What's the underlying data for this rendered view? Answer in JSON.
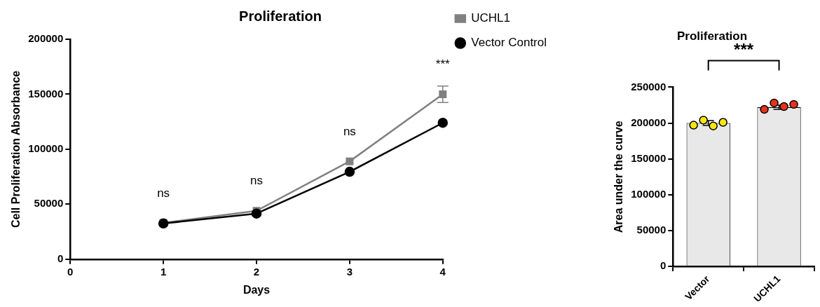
{
  "chart_data": [
    {
      "type": "line",
      "title": "Proliferation",
      "xlabel": "Days",
      "ylabel": "Cell Proliferation Absorbance",
      "x": [
        1,
        2,
        3,
        4
      ],
      "series": [
        {
          "name": "UCHL1",
          "color": "#808080",
          "marker": "square",
          "values": [
            33000,
            44000,
            89000,
            150000
          ],
          "errors": [
            null,
            null,
            null,
            7500
          ]
        },
        {
          "name": "Vector Control",
          "color": "#000000",
          "marker": "circle",
          "values": [
            32500,
            41500,
            79500,
            124000
          ]
        }
      ],
      "xlim": [
        0,
        4
      ],
      "xticks": [
        0,
        1,
        2,
        3,
        4
      ],
      "ylim": [
        0,
        200000
      ],
      "yticks": [
        0,
        50000,
        100000,
        150000,
        200000
      ],
      "legend": "right",
      "annotations": [
        {
          "text": "ns",
          "x": 1,
          "y": 33000
        },
        {
          "text": "ns",
          "x": 2,
          "y": 44000
        },
        {
          "text": "ns",
          "x": 3,
          "y": 89000
        },
        {
          "text": "***",
          "x": 4,
          "y": 150000
        }
      ]
    },
    {
      "type": "bar",
      "title": "Proliferation",
      "ylabel": "Area under the curve",
      "categories": [
        "Vector",
        "UCHL1"
      ],
      "series": [
        {
          "type": "bar",
          "color": "#e8e8e8",
          "values": [
            200000,
            222000
          ],
          "errors": [
            3500,
            3000
          ]
        },
        {
          "type": "scatter",
          "color": "#f5e614",
          "x": [
            "Vector",
            "Vector",
            "Vector",
            "Vector"
          ],
          "values": [
            197000,
            204000,
            196000,
            201000
          ]
        },
        {
          "type": "scatter",
          "color": "#e8321e",
          "x": [
            "UCHL1",
            "UCHL1",
            "UCHL1",
            "UCHL1"
          ],
          "values": [
            219000,
            228000,
            223000,
            226000
          ]
        }
      ],
      "ylim": [
        0,
        250000
      ],
      "yticks": [
        0,
        50000,
        100000,
        150000,
        200000,
        250000
      ],
      "legend": false,
      "annotations": [
        "***"
      ]
    }
  ]
}
